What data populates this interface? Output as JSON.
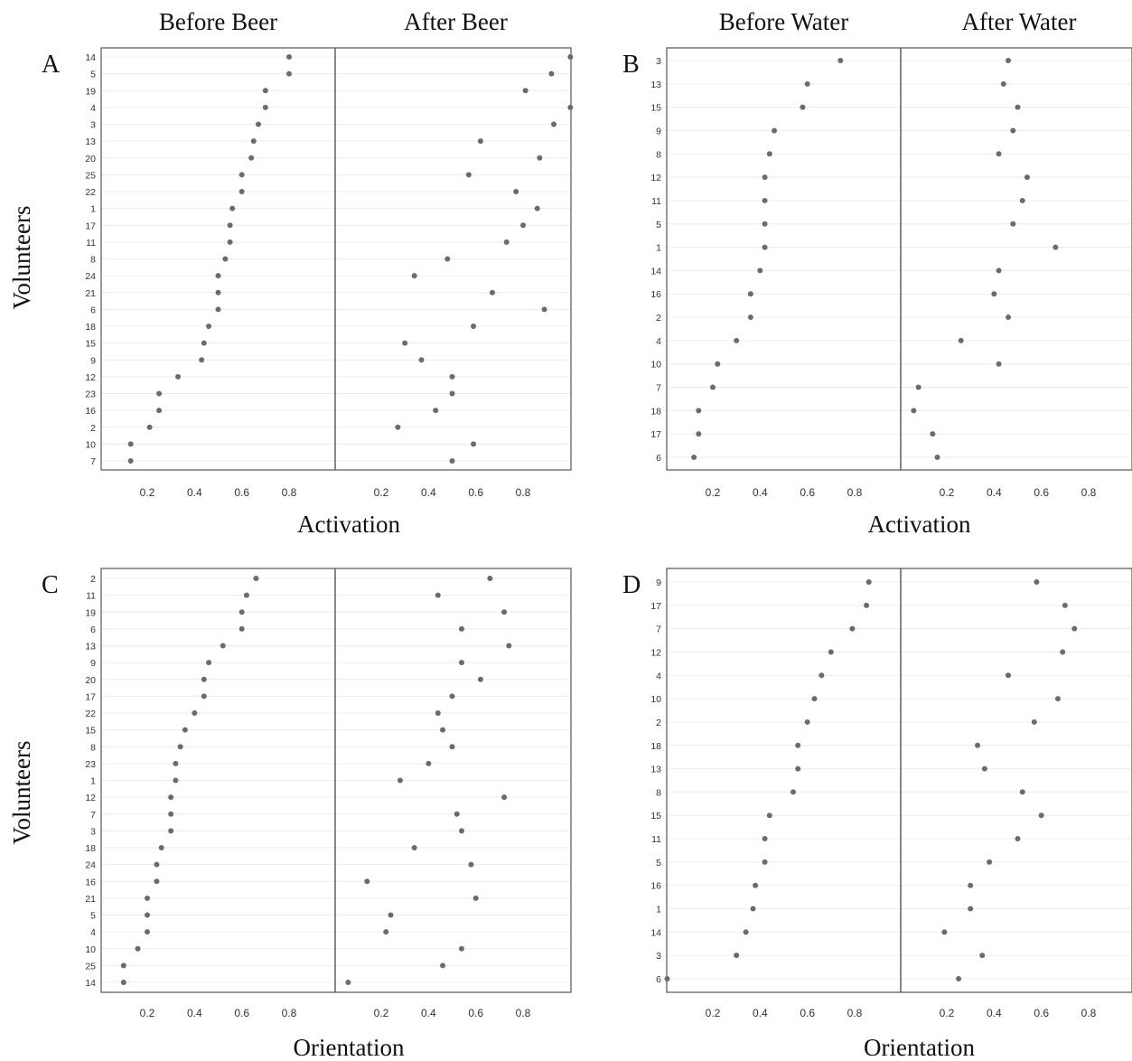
{
  "figure": {
    "volunteers_label": "Volunteers"
  },
  "chart_data": [
    {
      "type": "scatter",
      "panel_label": "A",
      "facets": [
        "Before Beer",
        "After Beer"
      ],
      "xlabel": "Activation",
      "ylabel": "Volunteers",
      "xticks": [
        "0.2",
        "0.4",
        "0.6",
        "0.8"
      ],
      "xlim": [
        0,
        1
      ],
      "categories": [
        "14",
        "5",
        "19",
        "4",
        "3",
        "13",
        "20",
        "25",
        "22",
        "1",
        "17",
        "11",
        "8",
        "24",
        "21",
        "6",
        "18",
        "15",
        "9",
        "12",
        "23",
        "16",
        "2",
        "10",
        "7"
      ],
      "series": [
        {
          "values": [
            0.8,
            0.8,
            0.7,
            0.7,
            0.67,
            0.65,
            0.64,
            0.6,
            0.6,
            0.56,
            0.55,
            0.55,
            0.53,
            0.5,
            0.5,
            0.5,
            0.46,
            0.44,
            0.43,
            0.33,
            0.25,
            0.25,
            0.21,
            0.13,
            0.13
          ]
        },
        {
          "values": [
            1.0,
            0.92,
            0.81,
            1.0,
            0.93,
            0.62,
            0.87,
            0.57,
            0.77,
            0.86,
            0.8,
            0.73,
            0.48,
            0.34,
            0.67,
            0.89,
            0.59,
            0.3,
            0.37,
            0.5,
            0.5,
            0.43,
            0.27,
            0.59,
            0.5
          ]
        }
      ]
    },
    {
      "type": "scatter",
      "panel_label": "B",
      "facets": [
        "Before Water",
        "After Water"
      ],
      "xlabel": "Activation",
      "ylabel": "",
      "xticks": [
        "0.2",
        "0.4",
        "0.6",
        "0.8"
      ],
      "xlim": [
        0,
        1
      ],
      "categories": [
        "3",
        "13",
        "15",
        "9",
        "8",
        "12",
        "11",
        "5",
        "1",
        "14",
        "16",
        "2",
        "4",
        "10",
        "7",
        "18",
        "17",
        "6"
      ],
      "series": [
        {
          "values": [
            0.74,
            0.6,
            0.58,
            0.46,
            0.44,
            0.42,
            0.42,
            0.42,
            0.42,
            0.4,
            0.36,
            0.36,
            0.3,
            0.22,
            0.2,
            0.14,
            0.14,
            0.12
          ]
        },
        {
          "values": [
            0.46,
            0.44,
            0.5,
            0.48,
            0.42,
            0.54,
            0.52,
            0.48,
            0.66,
            0.42,
            0.4,
            0.46,
            0.26,
            0.42,
            0.08,
            0.06,
            0.14,
            0.16
          ]
        }
      ]
    },
    {
      "type": "scatter",
      "panel_label": "C",
      "facets": [
        "",
        ""
      ],
      "xlabel": "Orientation",
      "ylabel": "Volunteers",
      "xticks": [
        "0.2",
        "0.4",
        "0.6",
        "0.8"
      ],
      "xlim": [
        0,
        1
      ],
      "categories": [
        "2",
        "11",
        "19",
        "6",
        "13",
        "9",
        "20",
        "17",
        "22",
        "15",
        "8",
        "23",
        "1",
        "12",
        "7",
        "3",
        "18",
        "24",
        "16",
        "21",
        "5",
        "4",
        "10",
        "25",
        "14"
      ],
      "series": [
        {
          "values": [
            0.66,
            0.62,
            0.6,
            0.6,
            0.52,
            0.46,
            0.44,
            0.44,
            0.4,
            0.36,
            0.34,
            0.32,
            0.32,
            0.3,
            0.3,
            0.3,
            0.26,
            0.24,
            0.24,
            0.2,
            0.2,
            0.2,
            0.16,
            0.1,
            0.1
          ]
        },
        {
          "values": [
            0.66,
            0.44,
            0.72,
            0.54,
            0.74,
            0.54,
            0.62,
            0.5,
            0.44,
            0.46,
            0.5,
            0.4,
            0.28,
            0.72,
            0.52,
            0.54,
            0.34,
            0.58,
            0.14,
            0.6,
            0.24,
            0.22,
            0.54,
            0.46,
            0.06
          ]
        }
      ]
    },
    {
      "type": "scatter",
      "panel_label": "D",
      "facets": [
        "",
        ""
      ],
      "xlabel": "Orientation",
      "ylabel": "",
      "xticks": [
        "0.2",
        "0.4",
        "0.6",
        "0.8"
      ],
      "xlim": [
        0,
        1
      ],
      "categories": [
        "9",
        "17",
        "7",
        "12",
        "4",
        "10",
        "2",
        "18",
        "13",
        "8",
        "15",
        "11",
        "5",
        "16",
        "1",
        "14",
        "3",
        "6"
      ],
      "series": [
        {
          "values": [
            0.86,
            0.85,
            0.79,
            0.7,
            0.66,
            0.63,
            0.6,
            0.56,
            0.56,
            0.54,
            0.44,
            0.42,
            0.42,
            0.38,
            0.37,
            0.34,
            0.3,
            0.0
          ]
        },
        {
          "values": [
            0.58,
            0.7,
            0.74,
            0.69,
            0.46,
            0.67,
            0.57,
            0.33,
            0.36,
            0.52,
            0.6,
            0.5,
            0.38,
            0.3,
            0.3,
            0.19,
            0.35,
            0.25
          ]
        }
      ]
    }
  ]
}
